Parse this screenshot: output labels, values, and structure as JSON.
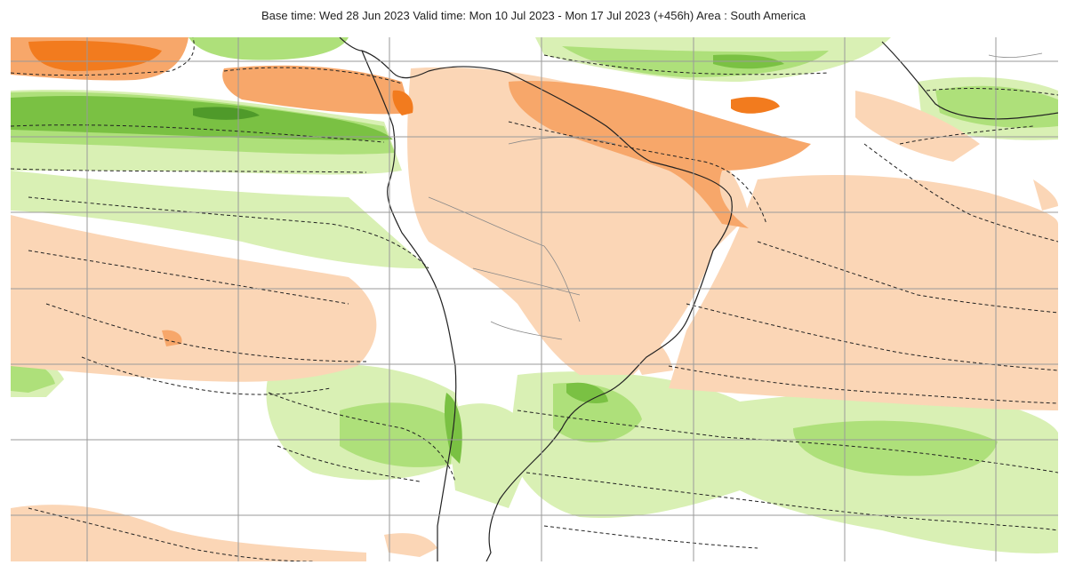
{
  "header": {
    "title": "Base time: Wed 28 Jun 2023 Valid time: Mon 10 Jul 2023 - Mon 17 Jul 2023 (+456h) Area : South America"
  },
  "map": {
    "region": "South America",
    "colors": {
      "light_green": "#d9f0b4",
      "mid_green": "#aee07a",
      "dark_green": "#7ac143",
      "deep_green": "#4f9a2a",
      "light_orange": "#fbd6b6",
      "mid_orange": "#f7a76a",
      "deep_orange": "#f27b1e",
      "grid": "#9a9a9a",
      "coast": "#222222"
    }
  }
}
